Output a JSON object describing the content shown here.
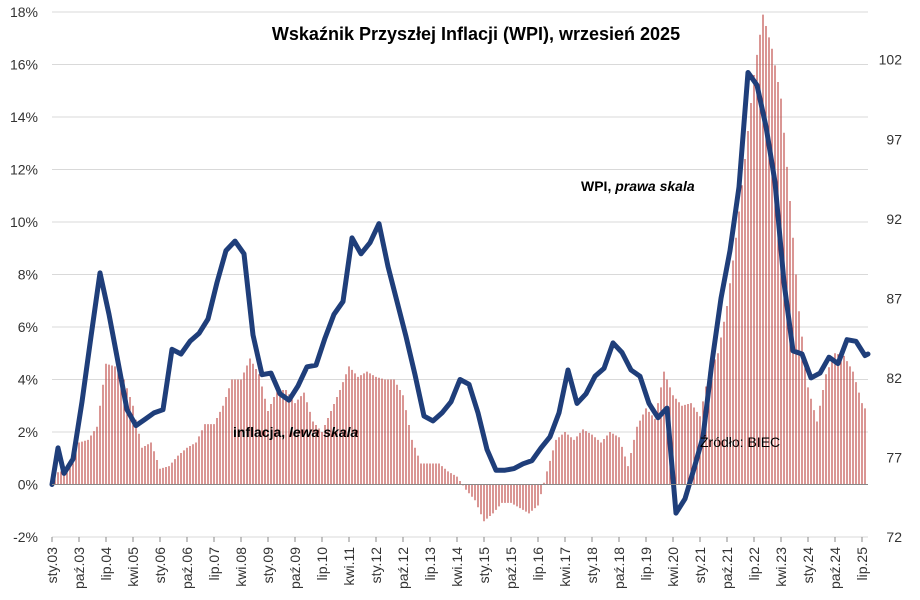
{
  "chart_data": {
    "type": "bar+line",
    "title": "Wskaźnik Przyszłej Inflacji (WPI), wrzesień 2025",
    "source_label": "Źródło: BIEC",
    "x_start": "2003-01",
    "x_end": "2025-09",
    "x_ticks": [
      "sty.03",
      "paź.03",
      "lip.04",
      "kwi.05",
      "sty.06",
      "paź.06",
      "lip.07",
      "kwi.08",
      "sty.09",
      "paź.09",
      "lip.10",
      "kwi.11",
      "sty.12",
      "paź.12",
      "lip.13",
      "kwi.14",
      "sty.15",
      "paź.15",
      "lip.16",
      "kwi.17",
      "sty.18",
      "paź.18",
      "lip.19",
      "kwi.20",
      "sty.21",
      "paź.21",
      "lip.22",
      "kwi.23",
      "sty.24",
      "paź.24",
      "lip.25"
    ],
    "left_axis": {
      "ticks": [
        "-2%",
        "0%",
        "2%",
        "4%",
        "6%",
        "8%",
        "10%",
        "12%",
        "14%",
        "16%",
        "18%"
      ],
      "ylim": [
        -2,
        18
      ],
      "unit": "%"
    },
    "right_axis": {
      "ticks": [
        "72",
        "77",
        "82",
        "87",
        "92",
        "97",
        "102"
      ],
      "ylim": [
        72,
        105
      ]
    },
    "series": [
      {
        "name": "inflacja, lewa skala",
        "type": "bar",
        "axis": "left",
        "color": "#c0504d",
        "points": [
          [
            "2003-01",
            0.4
          ],
          [
            "2003-04",
            0.5
          ],
          [
            "2003-07",
            0.8
          ],
          [
            "2003-10",
            1.6
          ],
          [
            "2004-01",
            1.7
          ],
          [
            "2004-04",
            2.2
          ],
          [
            "2004-07",
            4.6
          ],
          [
            "2004-10",
            4.5
          ],
          [
            "2005-01",
            4.0
          ],
          [
            "2005-04",
            3.0
          ],
          [
            "2005-07",
            1.4
          ],
          [
            "2005-10",
            1.6
          ],
          [
            "2006-01",
            0.6
          ],
          [
            "2006-04",
            0.7
          ],
          [
            "2006-07",
            1.1
          ],
          [
            "2006-10",
            1.4
          ],
          [
            "2007-01",
            1.6
          ],
          [
            "2007-04",
            2.3
          ],
          [
            "2007-07",
            2.3
          ],
          [
            "2007-10",
            3.0
          ],
          [
            "2008-01",
            4.0
          ],
          [
            "2008-04",
            4.0
          ],
          [
            "2008-07",
            4.8
          ],
          [
            "2008-10",
            4.2
          ],
          [
            "2009-01",
            2.8
          ],
          [
            "2009-04",
            3.6
          ],
          [
            "2009-07",
            3.6
          ],
          [
            "2009-10",
            3.1
          ],
          [
            "2010-01",
            3.5
          ],
          [
            "2010-04",
            2.4
          ],
          [
            "2010-07",
            2.0
          ],
          [
            "2010-10",
            2.8
          ],
          [
            "2011-01",
            3.6
          ],
          [
            "2011-04",
            4.5
          ],
          [
            "2011-07",
            4.1
          ],
          [
            "2011-10",
            4.3
          ],
          [
            "2012-01",
            4.1
          ],
          [
            "2012-04",
            4.0
          ],
          [
            "2012-07",
            4.0
          ],
          [
            "2012-10",
            3.4
          ],
          [
            "2013-01",
            1.7
          ],
          [
            "2013-04",
            0.8
          ],
          [
            "2013-07",
            0.8
          ],
          [
            "2013-10",
            0.8
          ],
          [
            "2014-01",
            0.5
          ],
          [
            "2014-04",
            0.3
          ],
          [
            "2014-07",
            -0.2
          ],
          [
            "2014-10",
            -0.6
          ],
          [
            "2015-01",
            -1.4
          ],
          [
            "2015-04",
            -1.1
          ],
          [
            "2015-07",
            -0.7
          ],
          [
            "2015-10",
            -0.7
          ],
          [
            "2016-01",
            -0.9
          ],
          [
            "2016-04",
            -1.1
          ],
          [
            "2016-07",
            -0.8
          ],
          [
            "2016-10",
            0.5
          ],
          [
            "2017-01",
            1.7
          ],
          [
            "2017-04",
            2.0
          ],
          [
            "2017-07",
            1.7
          ],
          [
            "2017-10",
            2.1
          ],
          [
            "2018-01",
            1.9
          ],
          [
            "2018-04",
            1.6
          ],
          [
            "2018-07",
            2.0
          ],
          [
            "2018-10",
            1.8
          ],
          [
            "2019-01",
            0.7
          ],
          [
            "2019-04",
            2.2
          ],
          [
            "2019-07",
            2.9
          ],
          [
            "2019-10",
            2.5
          ],
          [
            "2020-01",
            4.3
          ],
          [
            "2020-04",
            3.4
          ],
          [
            "2020-07",
            3.0
          ],
          [
            "2020-10",
            3.1
          ],
          [
            "2021-01",
            2.6
          ],
          [
            "2021-04",
            4.3
          ],
          [
            "2021-07",
            5.0
          ],
          [
            "2021-10",
            6.8
          ],
          [
            "2022-01",
            9.4
          ],
          [
            "2022-04",
            12.4
          ],
          [
            "2022-07",
            15.6
          ],
          [
            "2022-10",
            17.9
          ],
          [
            "2023-01",
            16.6
          ],
          [
            "2023-04",
            14.7
          ],
          [
            "2023-07",
            10.8
          ],
          [
            "2023-10",
            6.6
          ],
          [
            "2024-01",
            3.7
          ],
          [
            "2024-04",
            2.4
          ],
          [
            "2024-07",
            4.2
          ],
          [
            "2024-10",
            5.0
          ],
          [
            "2025-01",
            4.9
          ],
          [
            "2025-04",
            4.3
          ],
          [
            "2025-07",
            3.1
          ],
          [
            "2025-08",
            2.9
          ]
        ]
      },
      {
        "name": "WPI, prawa skala",
        "type": "line",
        "axis": "right",
        "color": "#1f3e7a",
        "points": [
          [
            "2003-01",
            75.3
          ],
          [
            "2003-03",
            77.6
          ],
          [
            "2003-05",
            76.0
          ],
          [
            "2003-08",
            76.9
          ],
          [
            "2003-11",
            80.5
          ],
          [
            "2004-02",
            84.6
          ],
          [
            "2004-05",
            88.6
          ],
          [
            "2004-08",
            86.0
          ],
          [
            "2004-11",
            83.0
          ],
          [
            "2005-02",
            80.0
          ],
          [
            "2005-05",
            79.0
          ],
          [
            "2005-08",
            79.4
          ],
          [
            "2005-11",
            79.8
          ],
          [
            "2006-02",
            80.0
          ],
          [
            "2006-05",
            83.8
          ],
          [
            "2006-08",
            83.5
          ],
          [
            "2006-11",
            84.3
          ],
          [
            "2007-02",
            84.8
          ],
          [
            "2007-05",
            85.7
          ],
          [
            "2007-08",
            88.0
          ],
          [
            "2007-11",
            90.0
          ],
          [
            "2008-02",
            90.6
          ],
          [
            "2008-05",
            89.8
          ],
          [
            "2008-08",
            84.7
          ],
          [
            "2008-11",
            82.2
          ],
          [
            "2009-02",
            82.3
          ],
          [
            "2009-05",
            81.0
          ],
          [
            "2009-08",
            80.6
          ],
          [
            "2009-11",
            81.5
          ],
          [
            "2010-02",
            82.7
          ],
          [
            "2010-05",
            82.8
          ],
          [
            "2010-08",
            84.5
          ],
          [
            "2010-11",
            86.0
          ],
          [
            "2011-02",
            86.8
          ],
          [
            "2011-05",
            90.8
          ],
          [
            "2011-08",
            89.8
          ],
          [
            "2011-11",
            90.5
          ],
          [
            "2012-02",
            91.7
          ],
          [
            "2012-05",
            89.0
          ],
          [
            "2012-08",
            86.8
          ],
          [
            "2012-11",
            84.6
          ],
          [
            "2013-02",
            82.2
          ],
          [
            "2013-05",
            79.6
          ],
          [
            "2013-08",
            79.3
          ],
          [
            "2013-11",
            79.8
          ],
          [
            "2014-02",
            80.5
          ],
          [
            "2014-05",
            81.9
          ],
          [
            "2014-08",
            81.6
          ],
          [
            "2014-11",
            79.8
          ],
          [
            "2015-02",
            77.5
          ],
          [
            "2015-05",
            76.2
          ],
          [
            "2015-08",
            76.2
          ],
          [
            "2015-11",
            76.3
          ],
          [
            "2016-02",
            76.6
          ],
          [
            "2016-05",
            76.8
          ],
          [
            "2016-08",
            77.6
          ],
          [
            "2016-11",
            78.3
          ],
          [
            "2017-02",
            79.8
          ],
          [
            "2017-05",
            82.5
          ],
          [
            "2017-08",
            80.4
          ],
          [
            "2017-11",
            81.0
          ],
          [
            "2018-02",
            82.1
          ],
          [
            "2018-05",
            82.6
          ],
          [
            "2018-08",
            84.2
          ],
          [
            "2018-11",
            83.6
          ],
          [
            "2019-02",
            82.5
          ],
          [
            "2019-05",
            82.1
          ],
          [
            "2019-08",
            80.4
          ],
          [
            "2019-11",
            79.5
          ],
          [
            "2020-02",
            80.1
          ],
          [
            "2020-05",
            73.5
          ],
          [
            "2020-08",
            74.4
          ],
          [
            "2020-11",
            76.3
          ],
          [
            "2021-02",
            78.3
          ],
          [
            "2021-05",
            83.0
          ],
          [
            "2021-08",
            87.0
          ],
          [
            "2021-11",
            90.0
          ],
          [
            "2022-02",
            94.0
          ],
          [
            "2022-05",
            101.2
          ],
          [
            "2022-08",
            100.4
          ],
          [
            "2022-11",
            97.8
          ],
          [
            "2023-02",
            94.3
          ],
          [
            "2023-05",
            88.0
          ],
          [
            "2023-08",
            83.7
          ],
          [
            "2023-11",
            83.5
          ],
          [
            "2024-02",
            82.0
          ],
          [
            "2024-05",
            82.3
          ],
          [
            "2024-08",
            83.3
          ],
          [
            "2024-11",
            82.9
          ],
          [
            "2025-02",
            84.4
          ],
          [
            "2025-05",
            84.3
          ],
          [
            "2025-08",
            83.4
          ],
          [
            "2025-09",
            83.5
          ]
        ]
      }
    ],
    "annotations": [
      {
        "text_bold": "inflacja, ",
        "text_italic": "lewa skala"
      },
      {
        "text_bold": "WPI, ",
        "text_italic": "prawa skala"
      }
    ],
    "grid": "horizontal",
    "legend": "none (inline labels)"
  }
}
